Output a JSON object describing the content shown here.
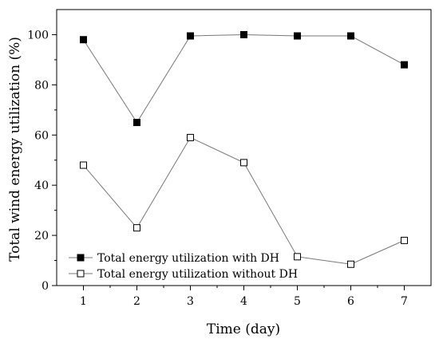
{
  "chart_data": {
    "type": "line",
    "title": "",
    "xlabel": "Time (day)",
    "ylabel": "Total wind energy utilization (%)",
    "x": [
      1,
      2,
      3,
      4,
      5,
      6,
      7
    ],
    "xlim": [
      0.5,
      7.5
    ],
    "ylim": [
      0,
      110
    ],
    "xticks": [
      1,
      2,
      3,
      4,
      5,
      6,
      7
    ],
    "yticks": [
      0,
      20,
      40,
      60,
      80,
      100
    ],
    "grid": false,
    "legend_position": "bottom-left",
    "series": [
      {
        "name": "Total energy utilization with DH",
        "marker": "filled-square",
        "values": [
          98,
          65,
          99.5,
          100,
          99.5,
          99.5,
          88
        ]
      },
      {
        "name": "Total energy utilization without DH",
        "marker": "open-square",
        "values": [
          48,
          23,
          59,
          49,
          11.5,
          8.5,
          18
        ]
      }
    ],
    "colors": {
      "line": "#777777",
      "marker": "#000000",
      "axis": "#000000"
    }
  }
}
